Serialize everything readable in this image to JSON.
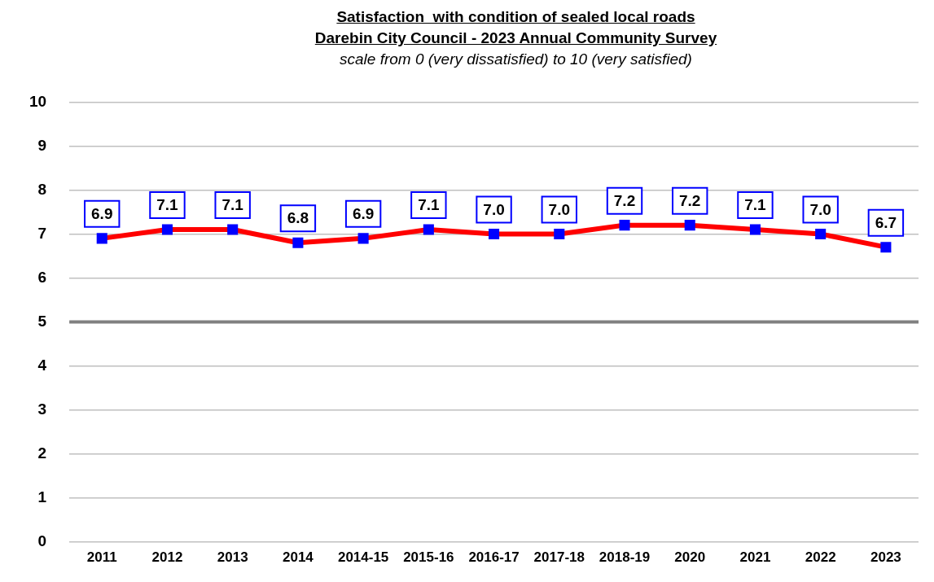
{
  "chart_data": {
    "type": "line",
    "title": "Satisfaction  with condition of sealed local roads\nDarebin City Council - 2023 Annual Community Survey",
    "subtitle": "scale from 0 (very dissatisfied) to 10 (very satisfied)",
    "categories": [
      "2011",
      "2012",
      "2013",
      "2014",
      "2014-15",
      "2015-16",
      "2016-17",
      "2017-18",
      "2018-19",
      "2020",
      "2021",
      "2022",
      "2023"
    ],
    "series": [
      {
        "color": "#ff0000",
        "values": [
          6.9,
          7.1,
          7.1,
          6.8,
          6.9,
          7.1,
          7.0,
          7.0,
          7.2,
          7.2,
          7.1,
          7.0,
          6.7
        ],
        "value_labels": [
          "6.9",
          "7.1",
          "7.1",
          "6.8",
          "6.9",
          "7.1",
          "7.0",
          "7.0",
          "7.2",
          "7.2",
          "7.1",
          "7.0",
          "6.7"
        ]
      }
    ],
    "ylim": [
      0,
      10
    ],
    "yticks": [
      0,
      1,
      2,
      3,
      4,
      5,
      6,
      7,
      8,
      9,
      10
    ],
    "grid": "y",
    "legend": false,
    "marker": "square",
    "line_style": "solid",
    "ref_lines": [
      {
        "axis": "y",
        "value": 5,
        "color": "#808080"
      }
    ]
  }
}
